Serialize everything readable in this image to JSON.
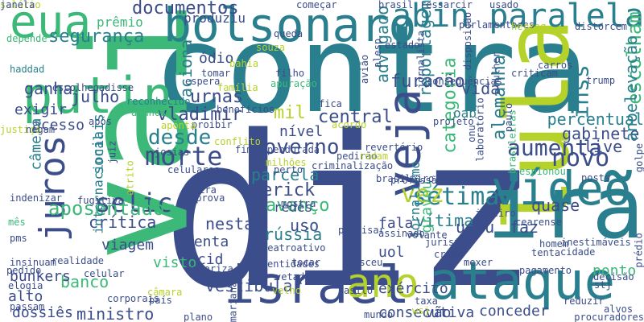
{
  "colors": {
    "background": "#ffffff",
    "dark_navy": "#3b4d8a",
    "teal": "#2a7f8e",
    "green": "#3cb878",
    "lime": "#b5d22a",
    "purple": "#44155e"
  },
  "words": [
    {
      "text": "contra",
      "color": "#2a7f8e"
    },
    {
      "text": "diz",
      "color": "#3b4d8a"
    },
    {
      "text": "vai",
      "color": "#3cb878"
    },
    {
      "text": "lula",
      "color": "#b5d22a"
    },
    {
      "text": "irã",
      "color": "#2a7f8e"
    },
    {
      "text": "israel",
      "color": "#3b4d8a"
    },
    {
      "text": "ataque",
      "color": "#2a7f8e"
    },
    {
      "text": "bolsonaro",
      "color": "#2a7f8e"
    },
    {
      "text": "putin",
      "color": "#3cb878"
    },
    {
      "text": "eua",
      "color": "#3cb878"
    },
    {
      "text": "abin paralela",
      "color": "#2a7f8e"
    },
    {
      "text": "vídeo",
      "color": "#2a7f8e"
    },
    {
      "text": "ano",
      "color": "#b5d22a"
    },
    {
      "text": "veja",
      "color": "#3b4d8a"
    },
    {
      "text": "juros",
      "color": "#3b4d8a"
    },
    {
      "text": "aumenta",
      "color": "#3b4d8a"
    },
    {
      "text": "governo",
      "color": "#3b4d8a"
    },
    {
      "text": "morte",
      "color": "#3b4d8a"
    },
    {
      "text": "desde",
      "color": "#2a7f8e"
    },
    {
      "text": "novo",
      "color": "#3b4d8a"
    },
    {
      "text": "selic",
      "color": "#3b4d8a"
    },
    {
      "text": "sétima",
      "color": "#2a7f8e"
    },
    {
      "text": "aposentados",
      "color": "#3cb878"
    },
    {
      "text": "segurança",
      "color": "#2a7f8e"
    },
    {
      "text": "documentos",
      "color": "#3b4d8a"
    },
    {
      "text": "furacão",
      "color": "#3b4d8a"
    },
    {
      "text": "urnas",
      "color": "#3b4d8a"
    },
    {
      "text": "vladimir",
      "color": "#3b4d8a"
    },
    {
      "text": "mil",
      "color": "#b5d22a"
    },
    {
      "text": "erick",
      "color": "#3b4d8a"
    },
    {
      "text": "parcela",
      "color": "#2a7f8e"
    },
    {
      "text": "avanço",
      "color": "#3cb878"
    },
    {
      "text": "vez",
      "color": "#b5d22a"
    },
    {
      "text": "inss",
      "color": "#2a7f8e"
    },
    {
      "text": "live",
      "color": "#3b4d8a"
    },
    {
      "text": "crítica",
      "color": "#3b4d8a"
    },
    {
      "text": "nesta",
      "color": "#3b4d8a"
    },
    {
      "text": "central",
      "color": "#3b4d8a"
    },
    {
      "text": "categoria",
      "color": "#3cb878"
    },
    {
      "text": "alemanha",
      "color": "#2a7f8e"
    },
    {
      "text": "percentual",
      "color": "#2a7f8e"
    },
    {
      "text": "gabinete",
      "color": "#3b4d8a"
    },
    {
      "text": "quase",
      "color": "#3b4d8a"
    },
    {
      "text": "vítima",
      "color": "#2a7f8e"
    },
    {
      "text": "rússia",
      "color": "#2a7f8e"
    },
    {
      "text": "uso",
      "color": "#3b4d8a"
    },
    {
      "text": "banco",
      "color": "#3cb878"
    },
    {
      "text": "ministro",
      "color": "#3b4d8a"
    },
    {
      "text": "vestibular",
      "color": "#3b4d8a"
    },
    {
      "text": "exército",
      "color": "#3b4d8a"
    },
    {
      "text": "consecutiva",
      "color": "#3b4d8a"
    },
    {
      "text": "conceder",
      "color": "#3b4d8a"
    },
    {
      "text": "vão",
      "color": "#3b4d8a"
    },
    {
      "text": "usou",
      "color": "#3b4d8a"
    },
    {
      "text": "faz",
      "color": "#3b4d8a"
    },
    {
      "text": "escolham",
      "color": "#3cb878"
    },
    {
      "text": "vida",
      "color": "#3b4d8a"
    },
    {
      "text": "advogado",
      "color": "#2a7f8e"
    },
    {
      "text": "reportagem",
      "color": "#2a7f8e"
    },
    {
      "text": "aciona",
      "color": "#2a7f8e"
    },
    {
      "text": "julho",
      "color": "#3b4d8a"
    },
    {
      "text": "ganha",
      "color": "#3b4d8a"
    },
    {
      "text": "exigir",
      "color": "#3b4d8a"
    },
    {
      "text": "acesso",
      "color": "#3b4d8a"
    },
    {
      "text": "nível",
      "color": "#3b4d8a"
    },
    {
      "text": "anoelevação",
      "color": "#2a7f8e"
    },
    {
      "text": "viagem",
      "color": "#3b4d8a"
    },
    {
      "text": "lenta",
      "color": "#3b4d8a"
    },
    {
      "text": "cid",
      "color": "#3b4d8a"
    },
    {
      "text": "visto",
      "color": "#3cb878"
    },
    {
      "text": "alto",
      "color": "#3b4d8a"
    },
    {
      "text": "bunkers",
      "color": "#3b4d8a"
    },
    {
      "text": "dossiês",
      "color": "#3b4d8a"
    },
    {
      "text": "câmera",
      "color": "#2a7f8e"
    },
    {
      "text": "sociais",
      "color": "#2a7f8e"
    },
    {
      "text": "internacional",
      "color": "#2a7f8e"
    },
    {
      "text": "jornalismo",
      "color": "#2a7f8e"
    },
    {
      "text": "fala",
      "color": "#3b4d8a"
    },
    {
      "text": "gravou",
      "color": "#3cb878"
    },
    {
      "text": "uol",
      "color": "#3b4d8a"
    },
    {
      "text": "oab",
      "color": "#2a7f8e"
    },
    {
      "text": "ódio",
      "color": "#3b4d8a"
    },
    {
      "text": "prêmio",
      "color": "#3cb878"
    },
    {
      "text": "produziu",
      "color": "#3b4d8a"
    },
    {
      "text": "ponto",
      "color": "#3cb878"
    },
    {
      "text": "redes",
      "color": "#3b4d8a"
    },
    {
      "text": "disse",
      "color": "#3b4d8a"
    },
    {
      "text": "haddad",
      "color": "#2a7f8e"
    },
    {
      "text": "fica",
      "color": "#3b4d8a"
    },
    {
      "text": "brasil",
      "color": "#3b4d8a"
    },
    {
      "text": "ressarcir",
      "color": "#3b4d8a"
    },
    {
      "text": "usado",
      "color": "#3b4d8a"
    },
    {
      "text": "começar",
      "color": "#3b4d8a"
    },
    {
      "text": "parlamentares",
      "color": "#3b4d8a"
    },
    {
      "text": "herzog",
      "color": "#b5d22a"
    },
    {
      "text": "distorcem",
      "color": "#3b4d8a"
    },
    {
      "text": "depende",
      "color": "#3cb878"
    },
    {
      "text": "queda",
      "color": "#3b4d8a"
    },
    {
      "text": "estado",
      "color": "#3b4d8a"
    },
    {
      "text": "jornalista",
      "color": "#3b4d8a"
    },
    {
      "text": "mulher",
      "color": "#3b4d8a"
    },
    {
      "text": "carros",
      "color": "#3b4d8a"
    },
    {
      "text": "criticam",
      "color": "#3b4d8a"
    },
    {
      "text": "trump",
      "color": "#3b4d8a"
    },
    {
      "text": "bahia",
      "color": "#b5d22a"
    },
    {
      "text": "souza",
      "color": "#b5d22a"
    },
    {
      "text": "tomar",
      "color": "#3b4d8a"
    },
    {
      "text": "filho",
      "color": "#3b4d8a"
    },
    {
      "text": "apuração",
      "color": "#3cb878"
    },
    {
      "text": "espera",
      "color": "#3b4d8a"
    },
    {
      "text": "família",
      "color": "#b5d22a"
    },
    {
      "text": "escolhega",
      "color": "#3b4d8a"
    },
    {
      "text": "reconhecido",
      "color": "#2a7f8e"
    },
    {
      "text": "alunos",
      "color": "#3cb878"
    },
    {
      "text": "após",
      "color": "#3b4d8a"
    },
    {
      "text": "benefícios",
      "color": "#3b4d8a"
    },
    {
      "text": "proibir",
      "color": "#3b4d8a"
    },
    {
      "text": "aponta",
      "color": "#b5d22a"
    },
    {
      "text": "justiça",
      "color": "#b5d22a"
    },
    {
      "text": "negam",
      "color": "#3b4d8a"
    },
    {
      "text": "josias",
      "color": "#3b4d8a"
    },
    {
      "text": "conflito",
      "color": "#b5d22a"
    },
    {
      "text": "fim",
      "color": "#3b4d8a"
    },
    {
      "text": "celulares",
      "color": "#3b4d8a"
    },
    {
      "text": "juiz",
      "color": "#3b4d8a"
    },
    {
      "text": "atrito",
      "color": "#b5d22a"
    },
    {
      "text": "acordo",
      "color": "#b5d22a"
    },
    {
      "text": "projeto",
      "color": "#3b4d8a"
    },
    {
      "text": "laboratório",
      "color": "#3b4d8a"
    },
    {
      "text": "revertério",
      "color": "#3b4d8a"
    },
    {
      "text": "pedirão",
      "color": "#3b4d8a"
    },
    {
      "text": "rodam",
      "color": "#b5d22a"
    },
    {
      "text": "milhões",
      "color": "#b5d22a"
    },
    {
      "text": "criminalização",
      "color": "#3b4d8a"
    },
    {
      "text": "pendurada",
      "color": "#3b4d8a"
    },
    {
      "text": "perto",
      "color": "#3b4d8a"
    },
    {
      "text": "onu",
      "color": "#3b4d8a"
    },
    {
      "text": "brasileiras",
      "color": "#3cb878"
    },
    {
      "text": "espionou",
      "color": "#3cb878"
    },
    {
      "text": "posts",
      "color": "#3b4d8a"
    },
    {
      "text": "profissão",
      "color": "#3b4d8a"
    },
    {
      "text": "brasileiro",
      "color": "#3b4d8a"
    },
    {
      "text": "lira",
      "color": "#3b4d8a"
    },
    {
      "text": "aprova",
      "color": "#3b4d8a"
    },
    {
      "text": "fugitiva",
      "color": "#3b4d8a"
    },
    {
      "text": "indenizar",
      "color": "#3b4d8a"
    },
    {
      "text": "mês",
      "color": "#3cb878"
    },
    {
      "text": "pms",
      "color": "#3b4d8a"
    },
    {
      "text": "mostra",
      "color": "#3b4d8a"
    },
    {
      "text": "precisar",
      "color": "#3b4d8a"
    },
    {
      "text": "juristas",
      "color": "#3b4d8a"
    },
    {
      "text": "assinado",
      "color": "#3b4d8a"
    },
    {
      "text": "volante",
      "color": "#3b4d8a"
    },
    {
      "text": "janeiro",
      "color": "#3b4d8a"
    },
    {
      "text": "cearense",
      "color": "#3b4d8a"
    },
    {
      "text": "golpe",
      "color": "#3b4d8a"
    },
    {
      "text": "inestimáveis",
      "color": "#3b4d8a"
    },
    {
      "text": "homem",
      "color": "#3b4d8a"
    },
    {
      "text": "tenta",
      "color": "#3b4d8a"
    },
    {
      "text": "cidade",
      "color": "#3b4d8a"
    },
    {
      "text": "prédio",
      "color": "#3b4d8a"
    },
    {
      "text": "reatroativo",
      "color": "#3b4d8a"
    },
    {
      "text": "autoriza",
      "color": "#3b4d8a"
    },
    {
      "text": "realidade",
      "color": "#3b4d8a"
    },
    {
      "text": "insinuam",
      "color": "#3b4d8a"
    },
    {
      "text": "pedido",
      "color": "#3b4d8a"
    },
    {
      "text": "celular",
      "color": "#3b4d8a"
    },
    {
      "text": "elogia",
      "color": "#3b4d8a"
    },
    {
      "text": "entidades",
      "color": "#3b4d8a"
    },
    {
      "text": "tocar",
      "color": "#3b4d8a"
    },
    {
      "text": "nasceu",
      "color": "#3b4d8a"
    },
    {
      "text": "crime",
      "color": "#3b4d8a"
    },
    {
      "text": "mexer",
      "color": "#3b4d8a"
    },
    {
      "text": "pagamento",
      "color": "#3b4d8a"
    },
    {
      "text": "decisão",
      "color": "#3b4d8a"
    },
    {
      "text": "stj",
      "color": "#3b4d8a"
    },
    {
      "text": "câmara",
      "color": "#b5d22a"
    },
    {
      "text": "passam",
      "color": "#3b4d8a"
    },
    {
      "text": "corporais",
      "color": "#3b4d8a"
    },
    {
      "text": "país",
      "color": "#3b4d8a"
    },
    {
      "text": "plano",
      "color": "#3b4d8a"
    },
    {
      "text": "mariana",
      "color": "#3b4d8a"
    },
    {
      "text": "vetado",
      "color": "#3b4d8a"
    },
    {
      "text": "velho",
      "color": "#b5d22a"
    },
    {
      "text": "asilo",
      "color": "#3b4d8a"
    },
    {
      "text": "mundo",
      "color": "#3b4d8a"
    },
    {
      "text": "taxa",
      "color": "#3b4d8a"
    },
    {
      "text": "wsj",
      "color": "#b5d22a"
    },
    {
      "text": "reduzir",
      "color": "#3b4d8a"
    },
    {
      "text": "alvos",
      "color": "#3b4d8a"
    },
    {
      "text": "procuradores",
      "color": "#3b4d8a"
    },
    {
      "text": "alesp",
      "color": "#3b4d8a"
    },
    {
      "text": "avião",
      "color": "#3b4d8a"
    },
    {
      "text": "consequências",
      "color": "#3b4d8a"
    },
    {
      "text": "disposição",
      "color": "#3b4d8a"
    },
    {
      "text": "paulo",
      "color": "#3b4d8a"
    },
    {
      "text": "salário",
      "color": "#b5d22a"
    },
    {
      "text": "janela",
      "color": "#3b4d8a"
    }
  ]
}
